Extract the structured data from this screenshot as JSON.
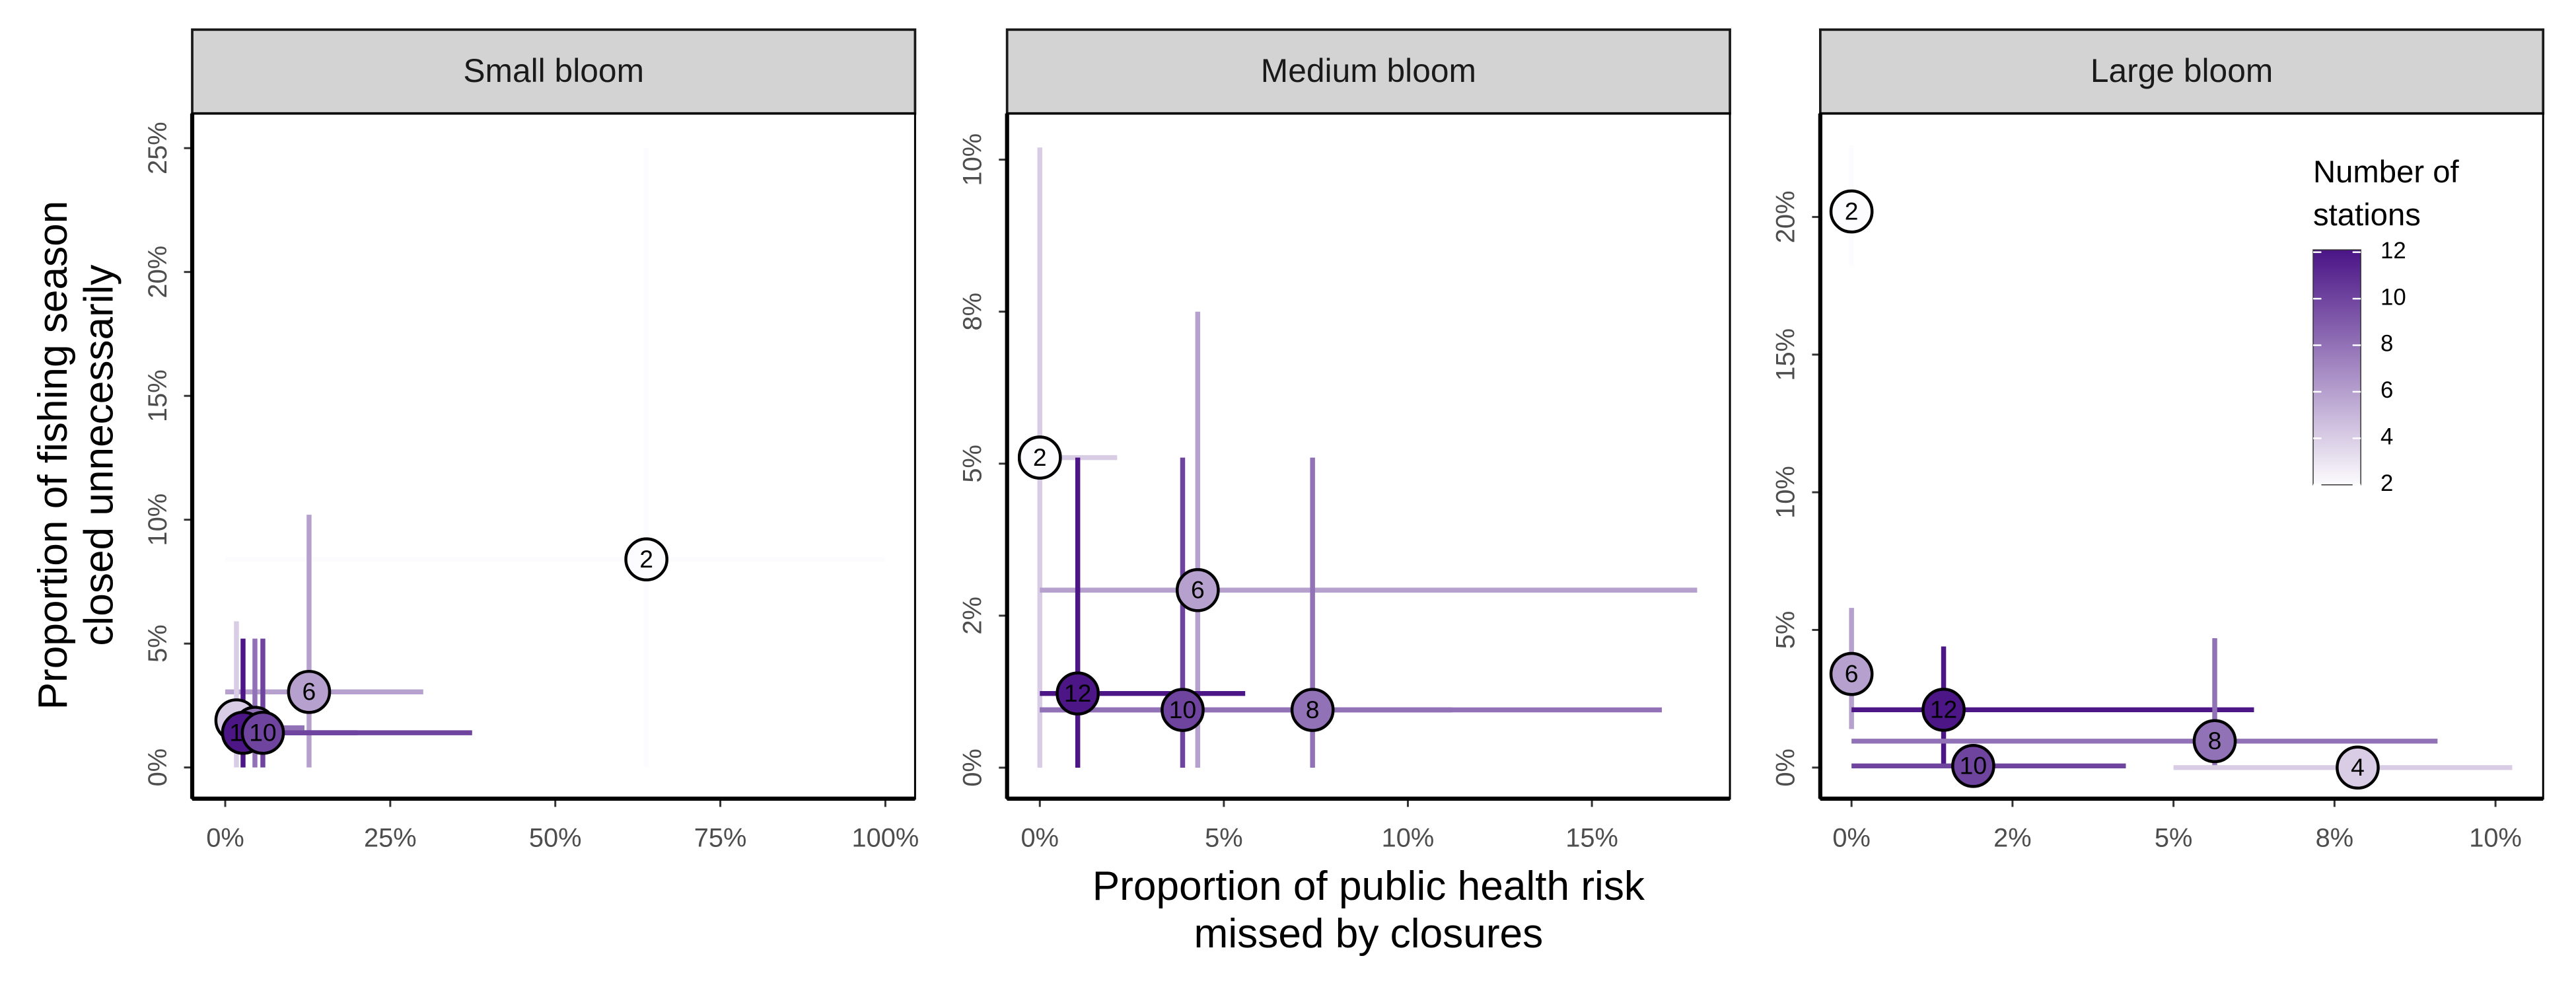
{
  "chart_data": [
    {
      "type": "scatter",
      "title": "Small bloom",
      "y_label": [
        "Proportion of fishing season",
        "closed unnecessarily"
      ],
      "stations": [
        2,
        6,
        4,
        8,
        12,
        10
      ],
      "x": [
        63.8,
        12.7,
        1.7,
        4.5,
        2.7,
        5.7
      ],
      "y": [
        8.4,
        3.05,
        1.9,
        1.6,
        1.4,
        1.4
      ],
      "x_low": [
        0,
        0,
        0,
        0,
        0,
        0
      ],
      "x_high": [
        100,
        30,
        5,
        12,
        20,
        37.4
      ],
      "y_low": [
        0,
        0,
        0,
        0,
        0,
        0
      ],
      "y_high": [
        25,
        10.2,
        5.9,
        5.2,
        5.2,
        5.2
      ],
      "xlim": [
        -5,
        104.5
      ],
      "ylim": [
        -1.26,
        26.4
      ],
      "xticks": [
        {
          "value": 0,
          "label": "0%"
        },
        {
          "value": 25,
          "label": "25%"
        },
        {
          "value": 50,
          "label": "50%"
        },
        {
          "value": 75,
          "label": "75%"
        },
        {
          "value": 100,
          "label": "100%"
        }
      ],
      "yticks": [
        {
          "value": 0,
          "label": "0%"
        },
        {
          "value": 5,
          "label": "5%"
        },
        {
          "value": 10,
          "label": "10%"
        },
        {
          "value": 15,
          "label": "15%"
        },
        {
          "value": 20,
          "label": "20%"
        },
        {
          "value": 25,
          "label": "25%"
        }
      ]
    },
    {
      "type": "scatter",
      "title": "Medium bloom",
      "x_label": [
        "Proportion of public health risk",
        "missed by closures"
      ],
      "stations": [
        4,
        2,
        6,
        12,
        10,
        8
      ],
      "x": [
        0,
        0,
        4.29,
        1.03,
        3.88,
        7.41
      ],
      "y": [
        5.1,
        5.1,
        2.92,
        1.22,
        0.95,
        0.95
      ],
      "x_low": [
        0,
        0,
        0,
        0,
        0,
        0
      ],
      "x_high": [
        2.1,
        0,
        17.86,
        5.58,
        11.2,
        16.9
      ],
      "y_low": [
        0,
        5.1,
        0,
        0,
        0,
        0
      ],
      "y_high": [
        10.2,
        5.1,
        7.5,
        5.1,
        5.1,
        5.1
      ],
      "xlim": [
        -0.89,
        18.75
      ],
      "ylim": [
        -0.51,
        10.76
      ],
      "xticks": [
        {
          "value": 0,
          "label": "0%"
        },
        {
          "value": 5,
          "label": "5%"
        },
        {
          "value": 10,
          "label": "10%"
        },
        {
          "value": 15,
          "label": "15%"
        }
      ],
      "yticks": [
        {
          "value": 0,
          "label": "0%"
        },
        {
          "value": 2.5,
          "label": "2%"
        },
        {
          "value": 5,
          "label": "5%"
        },
        {
          "value": 7.5,
          "label": "8%"
        },
        {
          "value": 10,
          "label": "10%"
        }
      ]
    },
    {
      "type": "scatter",
      "title": "Large bloom",
      "stations": [
        2,
        6,
        12,
        8,
        10,
        4
      ],
      "x": [
        0,
        0,
        1.43,
        5.64,
        1.89,
        7.86
      ],
      "y": [
        20.2,
        3.4,
        2.1,
        0.96,
        0.06,
        0
      ],
      "x_low": [
        0,
        0,
        0,
        0,
        0,
        5
      ],
      "x_high": [
        0,
        0,
        6.25,
        9.1,
        4.26,
        10.26
      ],
      "y_low": [
        18.2,
        1.4,
        0,
        0,
        0,
        0
      ],
      "y_high": [
        22.6,
        5.8,
        4.4,
        4.7,
        0.06,
        0
      ],
      "xlim": [
        -0.485,
        10.74
      ],
      "ylim": [
        -1.13,
        23.76
      ],
      "xticks": [
        {
          "value": 0,
          "label": "0%"
        },
        {
          "value": 2.5,
          "label": "2%"
        },
        {
          "value": 5,
          "label": "5%"
        },
        {
          "value": 7.5,
          "label": "8%"
        },
        {
          "value": 10,
          "label": "10%"
        }
      ],
      "yticks": [
        {
          "value": 0,
          "label": "0%"
        },
        {
          "value": 5,
          "label": "5%"
        },
        {
          "value": 10,
          "label": "10%"
        },
        {
          "value": 15,
          "label": "15%"
        },
        {
          "value": 20,
          "label": "20%"
        }
      ],
      "colorbar": {
        "title": [
          "Number of",
          "stations"
        ],
        "lim": [
          2,
          12.1
        ],
        "ticks": [
          2,
          4,
          6,
          8,
          10,
          12
        ],
        "colors": [
          "#fcfbfd",
          "#4a1486"
        ],
        "position": "top-right"
      }
    }
  ]
}
